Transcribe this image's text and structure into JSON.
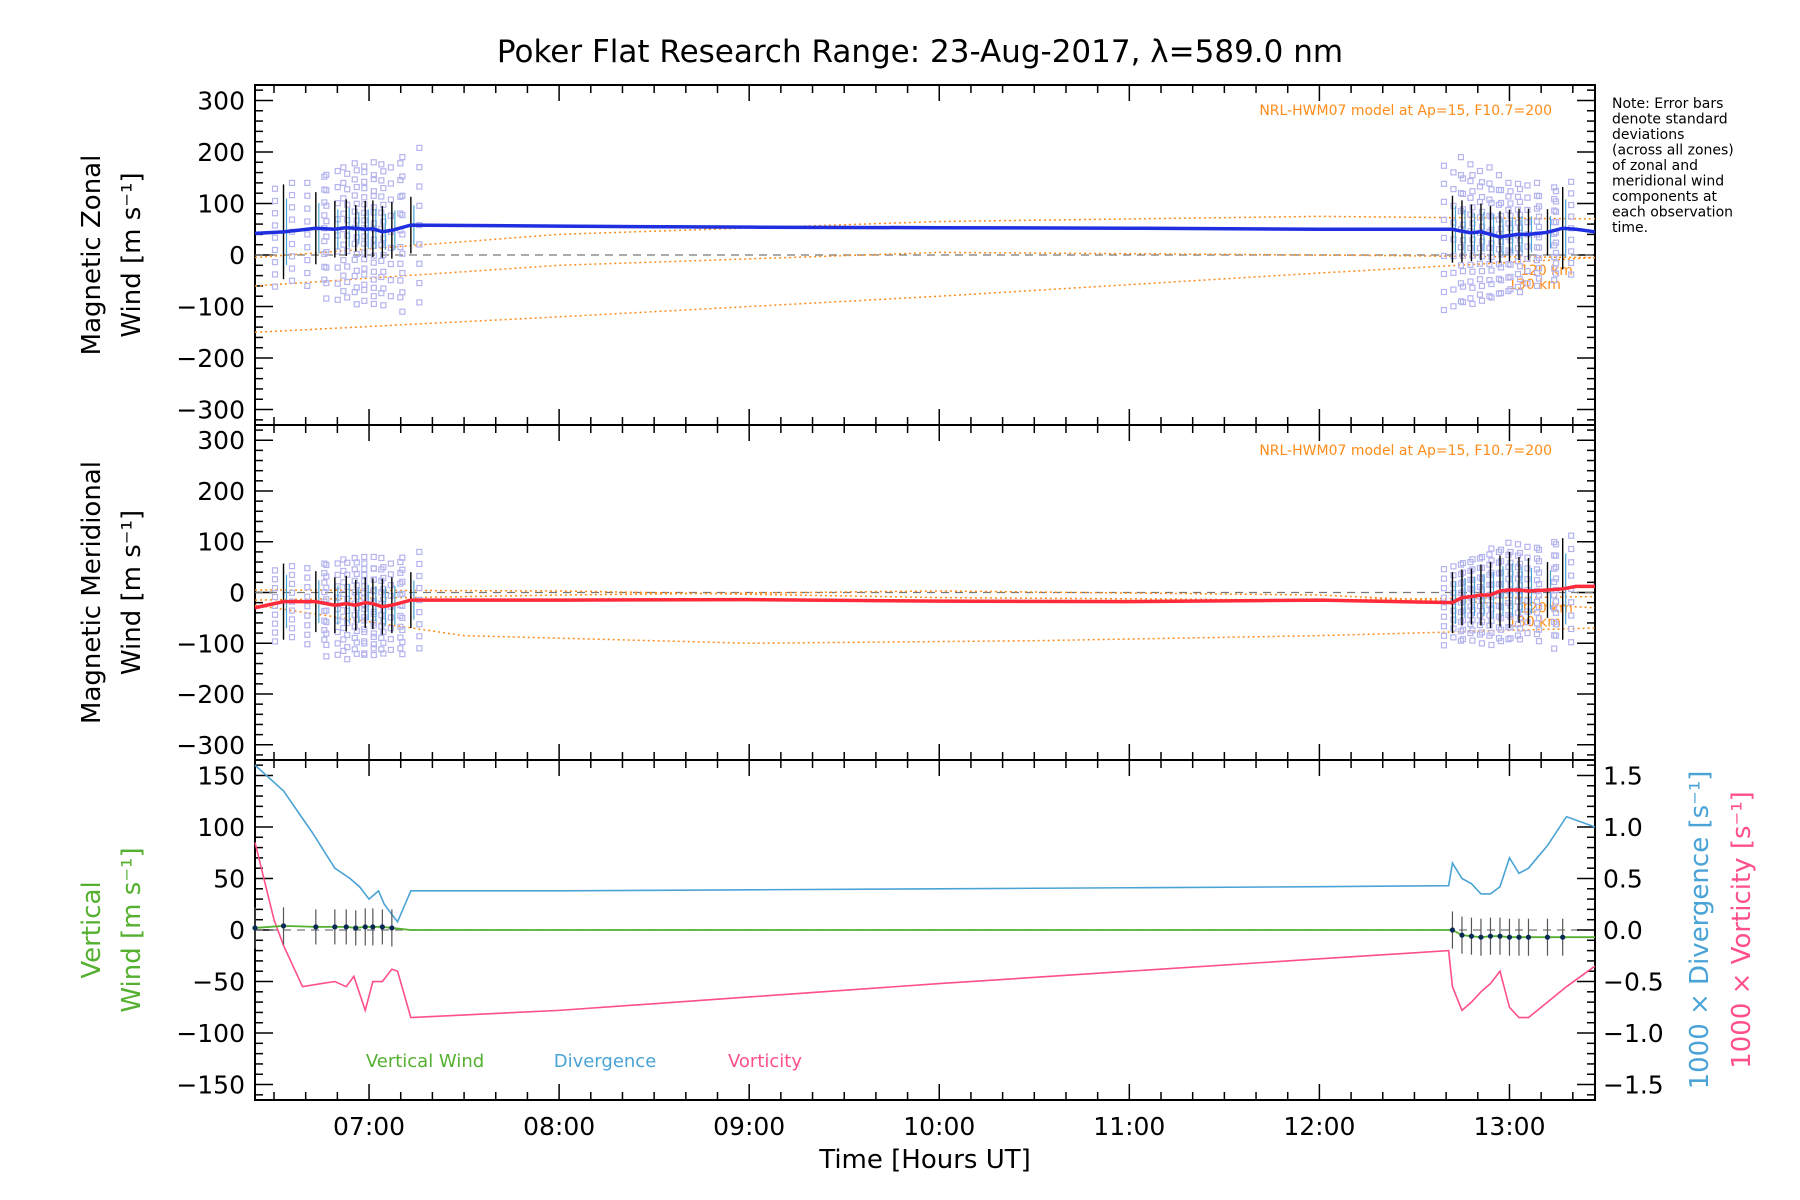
{
  "title": "Poker Flat Research Range: 23-Aug-2017, λ=589.0 nm",
  "note": [
    "Note: Error bars",
    "denote standard",
    "deviations",
    "(across all zones)",
    "of zonal and",
    "meridional wind",
    "components at",
    "each observation",
    "time."
  ],
  "model_label": "NRL-HWM07 model at Ap=15, F10.7=200",
  "alt_labels": [
    "120 km",
    "130 km"
  ],
  "colors": {
    "zonal": "#1f2fe0",
    "meridional": "#ff2a3a",
    "vertical": "#55b030",
    "divergence": "#4aa3d6",
    "vorticity": "#ff4f8a",
    "model": "#ff8c1a",
    "scatter": "#b4b4ee",
    "errorbar": "#000000",
    "zero_line": "#777777"
  },
  "chart_data": [
    {
      "type": "line",
      "name": "zonal",
      "ylabel": [
        "Magnetic Zonal",
        "Wind [m s⁻¹]"
      ],
      "ylim": [
        -330,
        330
      ],
      "yticks": [
        -300,
        -200,
        -100,
        0,
        100,
        200,
        300
      ],
      "xlim": [
        6.4,
        13.45
      ],
      "x": [
        6.4,
        6.55,
        6.72,
        6.82,
        6.88,
        6.93,
        6.98,
        7.02,
        7.07,
        7.12,
        7.22,
        8.0,
        9.0,
        10.0,
        11.0,
        12.0,
        12.7,
        12.75,
        12.8,
        12.85,
        12.9,
        12.95,
        13.0,
        13.05,
        13.1,
        13.2,
        13.28,
        13.35,
        13.45
      ],
      "values": [
        42,
        45,
        52,
        50,
        53,
        52,
        50,
        51,
        45,
        48,
        58,
        56,
        54,
        53,
        52,
        50,
        50,
        46,
        43,
        45,
        40,
        35,
        38,
        40,
        40,
        44,
        52,
        50,
        45
      ],
      "scatter_x": [
        6.55,
        6.72,
        6.82,
        6.88,
        6.93,
        6.98,
        7.02,
        7.07,
        7.12,
        7.22,
        12.7,
        12.75,
        12.8,
        12.85,
        12.9,
        12.95,
        13.0,
        13.05,
        13.1,
        13.2,
        13.28
      ],
      "scatter_spread": [
        95,
        100,
        120,
        125,
        120,
        130,
        125,
        125,
        130,
        150,
        140,
        130,
        120,
        125,
        115,
        105,
        100,
        95,
        100,
        80,
        90
      ],
      "errorbars": [
        92,
        70,
        55,
        55,
        45,
        55,
        55,
        50,
        55,
        55,
        65,
        60,
        55,
        55,
        55,
        50,
        50,
        50,
        50,
        45,
        80
      ],
      "model_lines": [
        {
          "x": [
            6.4,
            8.0,
            10.0,
            12.0,
            13.45
          ],
          "values": [
            -60,
            -20,
            5,
            0,
            -5
          ]
        },
        {
          "x": [
            6.4,
            8.0,
            10.0,
            12.0,
            13.45
          ],
          "values": [
            -150,
            -120,
            -80,
            -35,
            -5
          ]
        },
        {
          "x": [
            6.4,
            8.0,
            10.0,
            12.0,
            13.45
          ],
          "values": [
            -5,
            40,
            65,
            75,
            70
          ]
        }
      ]
    },
    {
      "type": "line",
      "name": "meridional",
      "ylabel": [
        "Magnetic Meridional",
        "Wind [m s⁻¹]"
      ],
      "ylim": [
        -330,
        330
      ],
      "yticks": [
        -300,
        -200,
        -100,
        0,
        100,
        200,
        300
      ],
      "xlim": [
        6.4,
        13.45
      ],
      "x": [
        6.4,
        6.55,
        6.72,
        6.82,
        6.88,
        6.93,
        6.98,
        7.02,
        7.07,
        7.12,
        7.22,
        8.0,
        9.0,
        10.0,
        11.0,
        12.0,
        12.7,
        12.75,
        12.8,
        12.85,
        12.9,
        12.95,
        13.0,
        13.05,
        13.1,
        13.2,
        13.28,
        13.35,
        13.45
      ],
      "values": [
        -30,
        -18,
        -18,
        -25,
        -22,
        -25,
        -20,
        -22,
        -28,
        -25,
        -15,
        -15,
        -14,
        -17,
        -18,
        -15,
        -20,
        -10,
        -8,
        -5,
        -5,
        3,
        5,
        5,
        3,
        5,
        7,
        12,
        12
      ],
      "scatter_x": [
        6.55,
        6.72,
        6.82,
        6.88,
        6.93,
        6.98,
        7.02,
        7.07,
        7.12,
        7.22,
        12.7,
        12.75,
        12.8,
        12.85,
        12.9,
        12.95,
        13.0,
        13.05,
        13.1,
        13.2,
        13.28
      ],
      "scatter_spread": [
        70,
        75,
        90,
        90,
        95,
        90,
        90,
        85,
        85,
        95,
        75,
        70,
        75,
        80,
        85,
        95,
        90,
        85,
        85,
        90,
        105
      ],
      "errorbars": [
        75,
        60,
        55,
        55,
        50,
        50,
        50,
        55,
        55,
        55,
        60,
        55,
        55,
        60,
        65,
        70,
        75,
        65,
        65,
        55,
        100
      ],
      "model_lines": [
        {
          "x": [
            6.4,
            8.0,
            10.0,
            12.0,
            13.45
          ],
          "values": [
            -15,
            -5,
            3,
            -5,
            -30
          ]
        },
        {
          "x": [
            6.4,
            7.5,
            9.0,
            10.5,
            12.0,
            13.45
          ],
          "values": [
            -25,
            -85,
            -100,
            -95,
            -85,
            -70
          ]
        },
        {
          "x": [
            6.4,
            8.0,
            10.0,
            12.0,
            13.45
          ],
          "values": [
            5,
            3,
            -10,
            -15,
            -8
          ]
        }
      ]
    },
    {
      "type": "line",
      "name": "vertical_divergence_vorticity",
      "ylabel": [
        "Vertical",
        "Wind [m s⁻¹]"
      ],
      "ylabel_right1": "1000 × Divergence [s⁻¹]",
      "ylabel_right2": "1000 × Vorticity [s⁻¹]",
      "ylim": [
        -165,
        165
      ],
      "yticks": [
        -150,
        -100,
        -50,
        0,
        50,
        100,
        150
      ],
      "ylim_right": [
        -1.65,
        1.65
      ],
      "yticks_right": [
        "-1.5",
        "-1.0",
        "-0.5",
        "0.0",
        "0.5",
        "1.0",
        "1.5"
      ],
      "xlim": [
        6.4,
        13.45
      ],
      "xticks": [
        "07:00",
        "08:00",
        "09:00",
        "10:00",
        "11:00",
        "12:00",
        "13:00"
      ],
      "xtick_values": [
        7,
        8,
        9,
        10,
        11,
        12,
        13
      ],
      "xlabel": "Time [Hours UT]",
      "legend": [
        "Vertical Wind",
        "Divergence",
        "Vorticity"
      ],
      "vertical": {
        "x": [
          6.4,
          6.55,
          6.72,
          6.82,
          6.88,
          6.93,
          6.98,
          7.02,
          7.07,
          7.12,
          7.22,
          8.0,
          10.0,
          12.0,
          12.7,
          12.75,
          12.8,
          12.85,
          12.9,
          12.95,
          13.0,
          13.05,
          13.1,
          13.2,
          13.28,
          13.45
        ],
        "values": [
          2,
          4,
          3,
          3,
          3,
          2,
          3,
          3,
          3,
          2,
          0,
          0,
          0,
          0,
          0,
          -5,
          -6,
          -7,
          -6,
          -6,
          -7,
          -7,
          -7,
          -7,
          -7,
          -7
        ],
        "errorbars": [
          20,
          18,
          17,
          17,
          17,
          17,
          18,
          18,
          17,
          18,
          0,
          0,
          0,
          0,
          18,
          18,
          18,
          18,
          18,
          18,
          18,
          18,
          18,
          18,
          18,
          0
        ]
      },
      "divergence": {
        "x": [
          6.4,
          6.55,
          6.7,
          6.82,
          6.9,
          6.95,
          7.0,
          7.05,
          7.08,
          7.12,
          7.15,
          7.22,
          8.0,
          9.0,
          10.0,
          11.0,
          12.0,
          12.68,
          12.7,
          12.75,
          12.8,
          12.85,
          12.9,
          12.95,
          13.0,
          13.05,
          13.1,
          13.2,
          13.3,
          13.45
        ],
        "values": [
          1.6,
          1.35,
          0.95,
          0.6,
          0.5,
          0.42,
          0.3,
          0.38,
          0.25,
          0.15,
          0.08,
          0.38,
          0.38,
          0.39,
          0.4,
          0.41,
          0.42,
          0.43,
          0.65,
          0.5,
          0.45,
          0.35,
          0.35,
          0.42,
          0.7,
          0.55,
          0.6,
          0.82,
          1.1,
          1.0
        ]
      },
      "vorticity": {
        "x": [
          6.4,
          6.5,
          6.55,
          6.65,
          6.75,
          6.82,
          6.88,
          6.92,
          6.98,
          7.02,
          7.07,
          7.12,
          7.15,
          7.22,
          8.0,
          9.0,
          10.0,
          11.0,
          12.0,
          12.68,
          12.7,
          12.75,
          12.8,
          12.85,
          12.9,
          12.95,
          13.0,
          13.05,
          13.1,
          13.2,
          13.3,
          13.45
        ],
        "values": [
          0.85,
          0.1,
          -0.15,
          -0.55,
          -0.52,
          -0.5,
          -0.55,
          -0.45,
          -0.78,
          -0.5,
          -0.5,
          -0.38,
          -0.4,
          -0.85,
          -0.78,
          -0.65,
          -0.52,
          -0.4,
          -0.28,
          -0.2,
          -0.55,
          -0.78,
          -0.7,
          -0.6,
          -0.52,
          -0.4,
          -0.75,
          -0.85,
          -0.85,
          -0.7,
          -0.55,
          -0.35
        ]
      }
    }
  ]
}
